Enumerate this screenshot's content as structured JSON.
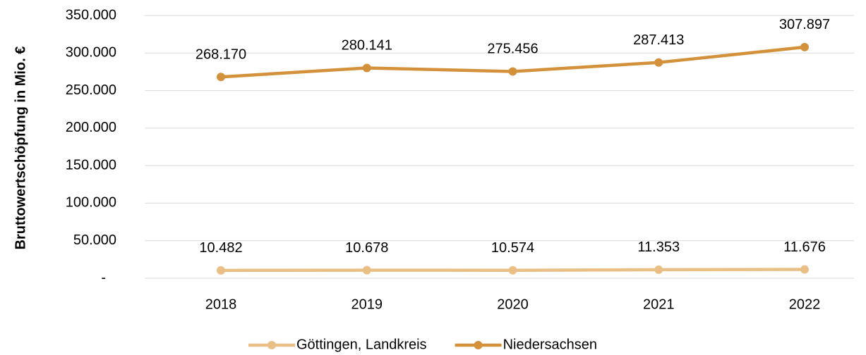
{
  "chart_data": {
    "type": "line",
    "y_label": "Bruttowertschöpfung in Mio. €",
    "categories": [
      "2018",
      "2019",
      "2020",
      "2021",
      "2022"
    ],
    "series": [
      {
        "name": "Göttingen, Landkreis",
        "color": "#eabf85",
        "values": [
          10482,
          10678,
          10574,
          11353,
          11676
        ],
        "value_labels": [
          "10.482",
          "10.678",
          "10.574",
          "11.353",
          "11.676"
        ]
      },
      {
        "name": "Niedersachsen",
        "color": "#d4913b",
        "values": [
          268170,
          280141,
          275456,
          287413,
          307897
        ],
        "value_labels": [
          "268.170",
          "280.141",
          "275.456",
          "287.413",
          "307.897"
        ]
      }
    ],
    "ylim": [
      0,
      350000
    ],
    "yticks": [
      {
        "value": 0,
        "label": "-"
      },
      {
        "value": 50000,
        "label": "50.000"
      },
      {
        "value": 100000,
        "label": "100.000"
      },
      {
        "value": 150000,
        "label": "150.000"
      },
      {
        "value": 200000,
        "label": "200.000"
      },
      {
        "value": 250000,
        "label": "250.000"
      },
      {
        "value": 300000,
        "label": "300.000"
      },
      {
        "value": 350000,
        "label": "350.000"
      }
    ],
    "grid": true,
    "legend": "bottom"
  }
}
